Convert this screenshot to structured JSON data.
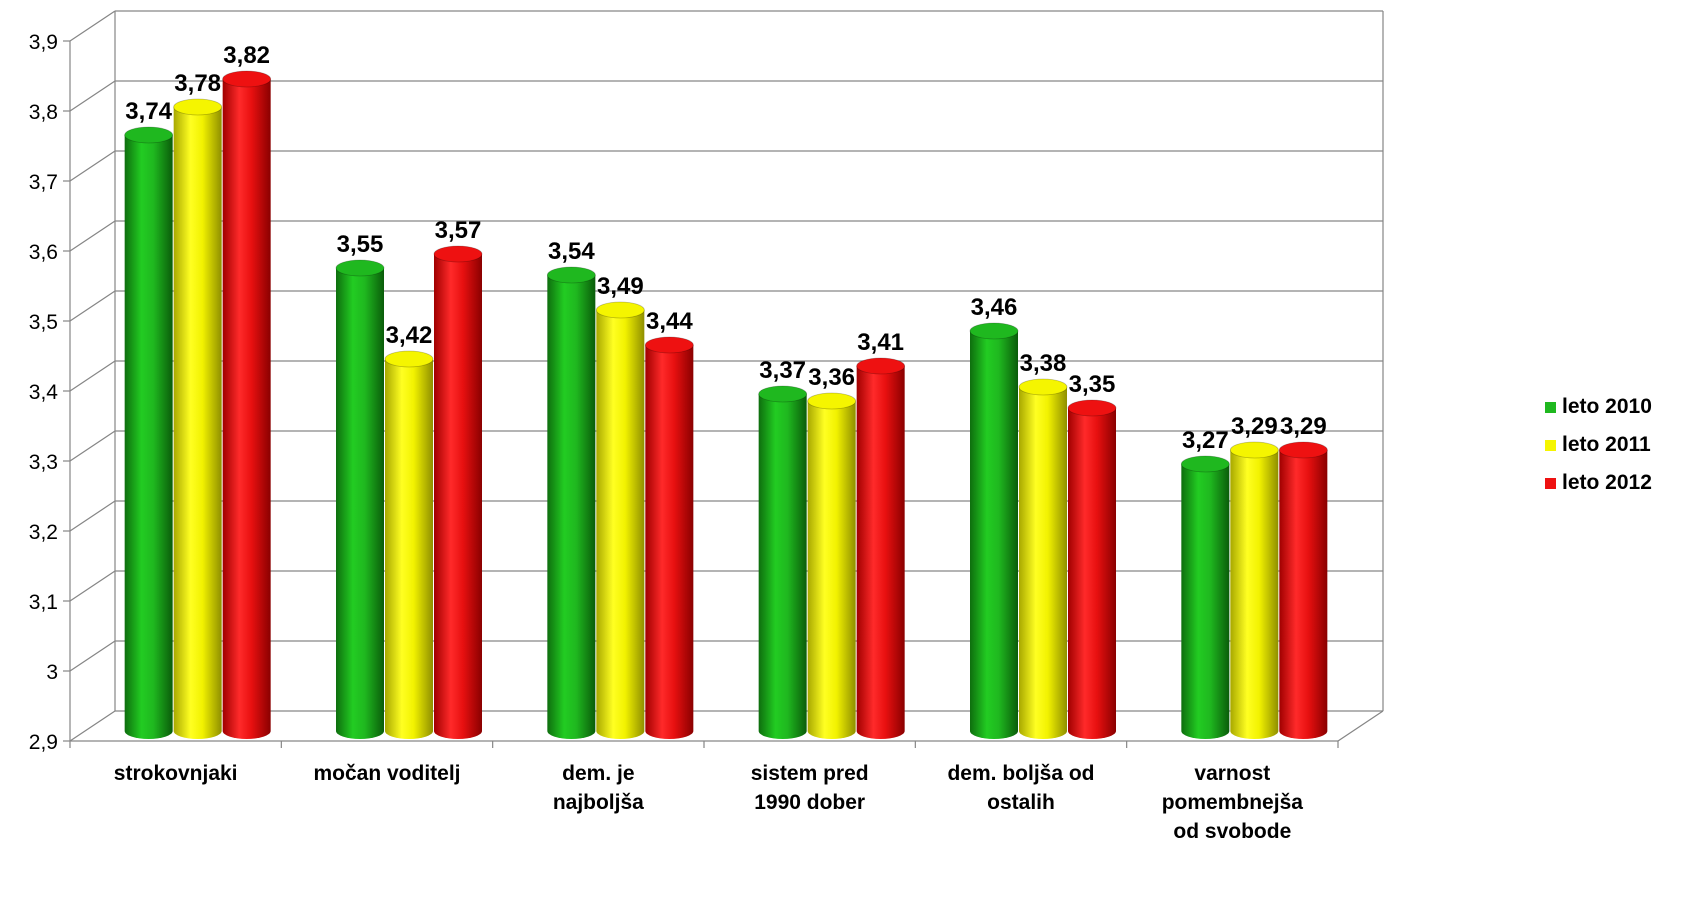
{
  "chart_data": {
    "type": "bar",
    "title": "",
    "xlabel": "",
    "ylabel": "",
    "ylim": [
      2.9,
      3.9
    ],
    "yticks": [
      2.9,
      3,
      3.1,
      3.2,
      3.3,
      3.4,
      3.5,
      3.6,
      3.7,
      3.8,
      3.9
    ],
    "ytick_labels": [
      "2,9",
      "3",
      "3,1",
      "3,2",
      "3,3",
      "3,4",
      "3,5",
      "3,6",
      "3,7",
      "3,8",
      "3,9"
    ],
    "grid": true,
    "style": "3d-cylinder",
    "legend_position": "right",
    "categories": [
      [
        "strokovnjaki"
      ],
      [
        "močan voditelj"
      ],
      [
        "dem. je",
        "najboljša"
      ],
      [
        "sistem pred",
        "1990 dober"
      ],
      [
        "dem. boljša od",
        "ostalih"
      ],
      [
        "varnost",
        "pomembnejša",
        "od svobode"
      ]
    ],
    "series": [
      {
        "name": "leto 2010",
        "color": "#1fb81f",
        "values": [
          3.74,
          3.55,
          3.54,
          3.37,
          3.46,
          3.27
        ],
        "labels": [
          "3,74",
          "3,55",
          "3,54",
          "3,37",
          "3,46",
          "3,27"
        ]
      },
      {
        "name": "leto 2011",
        "color": "#f5f500",
        "values": [
          3.78,
          3.42,
          3.49,
          3.36,
          3.38,
          3.29
        ],
        "labels": [
          "3,78",
          "3,42",
          "3,49",
          "3,36",
          "3,38",
          "3,29"
        ]
      },
      {
        "name": "leto 2012",
        "color": "#ee1111",
        "values": [
          3.82,
          3.57,
          3.44,
          3.41,
          3.35,
          3.29
        ],
        "labels": [
          "3,82",
          "3,57",
          "3,44",
          "3,41",
          "3,35",
          "3,29"
        ]
      }
    ]
  }
}
